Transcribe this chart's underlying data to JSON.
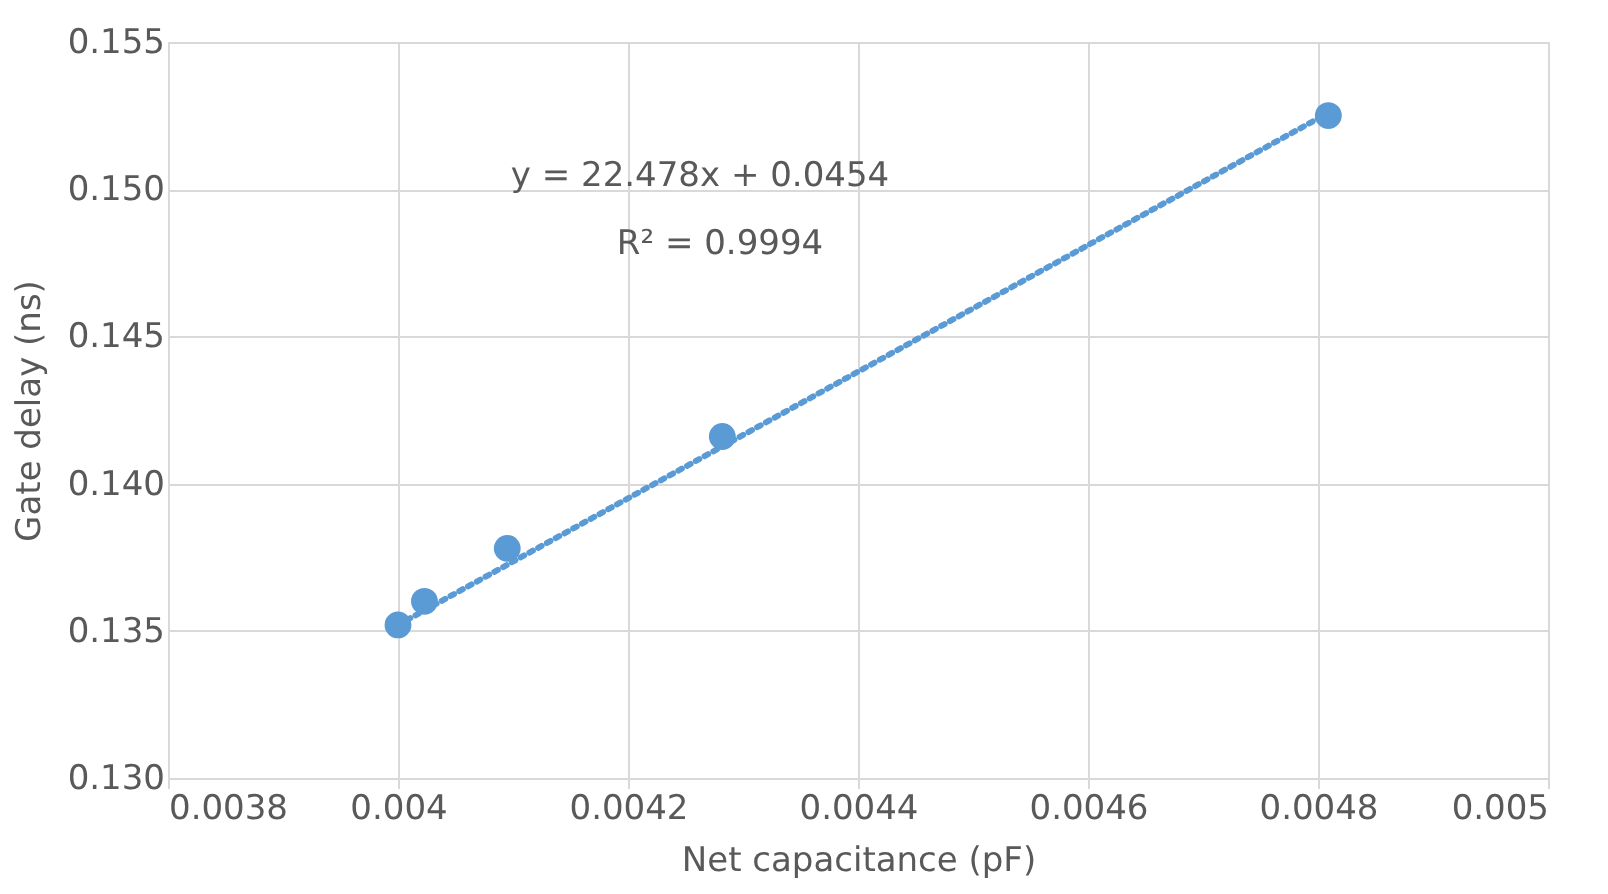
{
  "chart_data": {
    "type": "scatter",
    "xlabel": "Net capacitance (pF)",
    "ylabel": "Gate delay (ns)",
    "xlim": [
      0.0038,
      0.005
    ],
    "xticks": [
      0.0038,
      0.004,
      0.0042,
      0.0044,
      0.0046,
      0.0048,
      0.005
    ],
    "ylim": [
      0.13,
      0.155
    ],
    "yticks": [
      {
        "value": 0.13,
        "label": "0.130"
      },
      0.135,
      {
        "value": 0.14,
        "label": "0.140"
      },
      0.145,
      {
        "value": 0.15,
        "label": "0.150"
      },
      0.155
    ],
    "grid": true,
    "legend": false,
    "marker": "circle",
    "series": [
      {
        "type": "scatter",
        "color": "#5b9bd5",
        "x": [
          0.004,
          0.004023,
          0.004095,
          0.004282,
          0.004809
        ],
        "values": [
          0.1352,
          0.136,
          0.1378,
          0.1416,
          0.1525
        ]
      },
      {
        "type": "line",
        "color": "#5b9bd5",
        "line_style": "dotted",
        "marker": "none",
        "x": [
          0.004,
          0.0048
        ],
        "values": [
          0.1352,
          0.1524
        ]
      }
    ],
    "annotations": [
      "y = 22.478x + 0.0454",
      "R² = 0.9994"
    ]
  }
}
